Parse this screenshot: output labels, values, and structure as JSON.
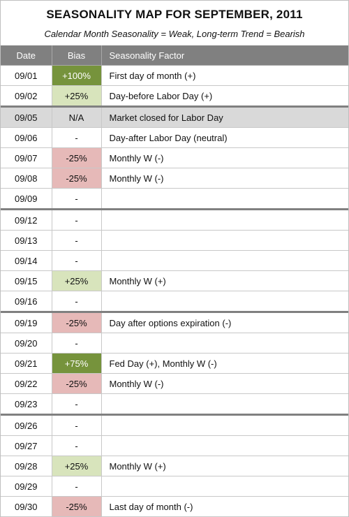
{
  "title": "SEASONALITY MAP FOR SEPTEMBER, 2011",
  "subtitle": "Calendar Month Seasonality = Weak, Long-term Trend = Bearish",
  "headers": {
    "date": "Date",
    "bias": "Bias",
    "factor": "Seasonality Factor"
  },
  "colors": {
    "header_bg": "#808080",
    "strong_positive": "#76933c",
    "positive": "#d8e4bc",
    "negative": "#e6b9b8",
    "closed": "#d9d9d9"
  },
  "rows": [
    {
      "date": "09/01",
      "bias": "+100%",
      "factor": "First day of month (+)",
      "kind": "strong-pos",
      "week_start": false
    },
    {
      "date": "09/02",
      "bias": "+25%",
      "factor": "Day-before Labor Day (+)",
      "kind": "pos",
      "week_start": false
    },
    {
      "date": "09/05",
      "bias": "N/A",
      "factor": "Market closed for Labor Day",
      "kind": "closed",
      "week_start": true
    },
    {
      "date": "09/06",
      "bias": "-",
      "factor": "Day-after Labor Day (neutral)",
      "kind": "none",
      "week_start": false
    },
    {
      "date": "09/07",
      "bias": "-25%",
      "factor": "Monthly W (-)",
      "kind": "neg",
      "week_start": false
    },
    {
      "date": "09/08",
      "bias": "-25%",
      "factor": "Monthly W (-)",
      "kind": "neg",
      "week_start": false
    },
    {
      "date": "09/09",
      "bias": "-",
      "factor": "",
      "kind": "none",
      "week_start": false
    },
    {
      "date": "09/12",
      "bias": "-",
      "factor": "",
      "kind": "none",
      "week_start": true
    },
    {
      "date": "09/13",
      "bias": "-",
      "factor": "",
      "kind": "none",
      "week_start": false
    },
    {
      "date": "09/14",
      "bias": "-",
      "factor": "",
      "kind": "none",
      "week_start": false
    },
    {
      "date": "09/15",
      "bias": "+25%",
      "factor": "Monthly W (+)",
      "kind": "pos",
      "week_start": false
    },
    {
      "date": "09/16",
      "bias": "-",
      "factor": "",
      "kind": "none",
      "week_start": false
    },
    {
      "date": "09/19",
      "bias": "-25%",
      "factor": "Day after options expiration (-)",
      "kind": "neg",
      "week_start": true
    },
    {
      "date": "09/20",
      "bias": "-",
      "factor": "",
      "kind": "none",
      "week_start": false
    },
    {
      "date": "09/21",
      "bias": "+75%",
      "factor": "Fed Day (+), Monthly W (-)",
      "kind": "strong-pos",
      "week_start": false
    },
    {
      "date": "09/22",
      "bias": "-25%",
      "factor": "Monthly W (-)",
      "kind": "neg",
      "week_start": false
    },
    {
      "date": "09/23",
      "bias": "-",
      "factor": "",
      "kind": "none",
      "week_start": false
    },
    {
      "date": "09/26",
      "bias": "-",
      "factor": "",
      "kind": "none",
      "week_start": true
    },
    {
      "date": "09/27",
      "bias": "-",
      "factor": "",
      "kind": "none",
      "week_start": false
    },
    {
      "date": "09/28",
      "bias": "+25%",
      "factor": "Monthly W (+)",
      "kind": "pos",
      "week_start": false
    },
    {
      "date": "09/29",
      "bias": "-",
      "factor": "",
      "kind": "none",
      "week_start": false
    },
    {
      "date": "09/30",
      "bias": "-25%",
      "factor": "Last day of month (-)",
      "kind": "neg",
      "week_start": false
    }
  ]
}
